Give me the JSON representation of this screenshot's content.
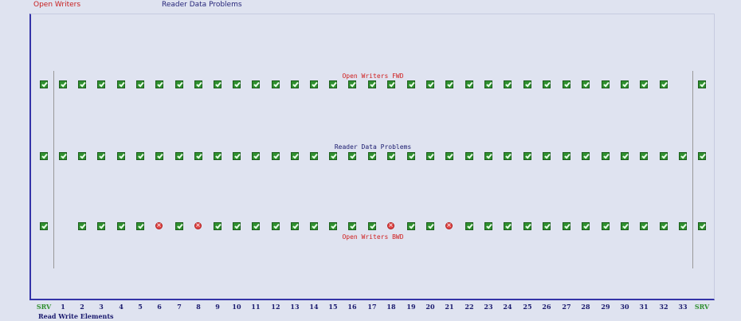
{
  "header": {
    "link_open_writers": "Open Writers",
    "link_reader_data_problems": "Reader Data Problems"
  },
  "grid": {
    "row_titles": {
      "fwd": "Open Writers FWD",
      "rdp": "Reader Data Problems",
      "bwd": "Open Writers BWD"
    },
    "columns": [
      "SRV",
      "1",
      "2",
      "3",
      "4",
      "5",
      "6",
      "7",
      "8",
      "9",
      "10",
      "11",
      "12",
      "13",
      "14",
      "15",
      "16",
      "17",
      "18",
      "19",
      "20",
      "21",
      "22",
      "23",
      "24",
      "25",
      "26",
      "27",
      "28",
      "29",
      "30",
      "31",
      "32",
      "33",
      "SRV"
    ],
    "rows": [
      {
        "name": "fwd",
        "status": [
          "ok",
          "ok",
          "ok",
          "ok",
          "ok",
          "ok",
          "ok",
          "ok",
          "ok",
          "ok",
          "ok",
          "ok",
          "ok",
          "ok",
          "ok",
          "ok",
          "ok",
          "ok",
          "ok",
          "ok",
          "ok",
          "ok",
          "ok",
          "ok",
          "ok",
          "ok",
          "ok",
          "ok",
          "ok",
          "ok",
          "ok",
          "ok",
          "ok",
          "none",
          "ok"
        ]
      },
      {
        "name": "rdp",
        "status": [
          "ok",
          "ok",
          "ok",
          "ok",
          "ok",
          "ok",
          "ok",
          "ok",
          "ok",
          "ok",
          "ok",
          "ok",
          "ok",
          "ok",
          "ok",
          "ok",
          "ok",
          "ok",
          "ok",
          "ok",
          "ok",
          "ok",
          "ok",
          "ok",
          "ok",
          "ok",
          "ok",
          "ok",
          "ok",
          "ok",
          "ok",
          "ok",
          "ok",
          "ok",
          "ok"
        ]
      },
      {
        "name": "bwd",
        "status": [
          "ok",
          "none",
          "ok",
          "ok",
          "ok",
          "ok",
          "error",
          "ok",
          "error",
          "ok",
          "ok",
          "ok",
          "ok",
          "ok",
          "ok",
          "ok",
          "ok",
          "ok",
          "error",
          "ok",
          "ok",
          "error",
          "ok",
          "ok",
          "ok",
          "ok",
          "ok",
          "ok",
          "ok",
          "ok",
          "ok",
          "ok",
          "ok",
          "ok",
          "ok"
        ]
      }
    ],
    "footer_label": "Read Write Elements"
  },
  "colors": {
    "ok": "#2f8f2f",
    "error": "#e04545",
    "accent": "#3434a8"
  }
}
